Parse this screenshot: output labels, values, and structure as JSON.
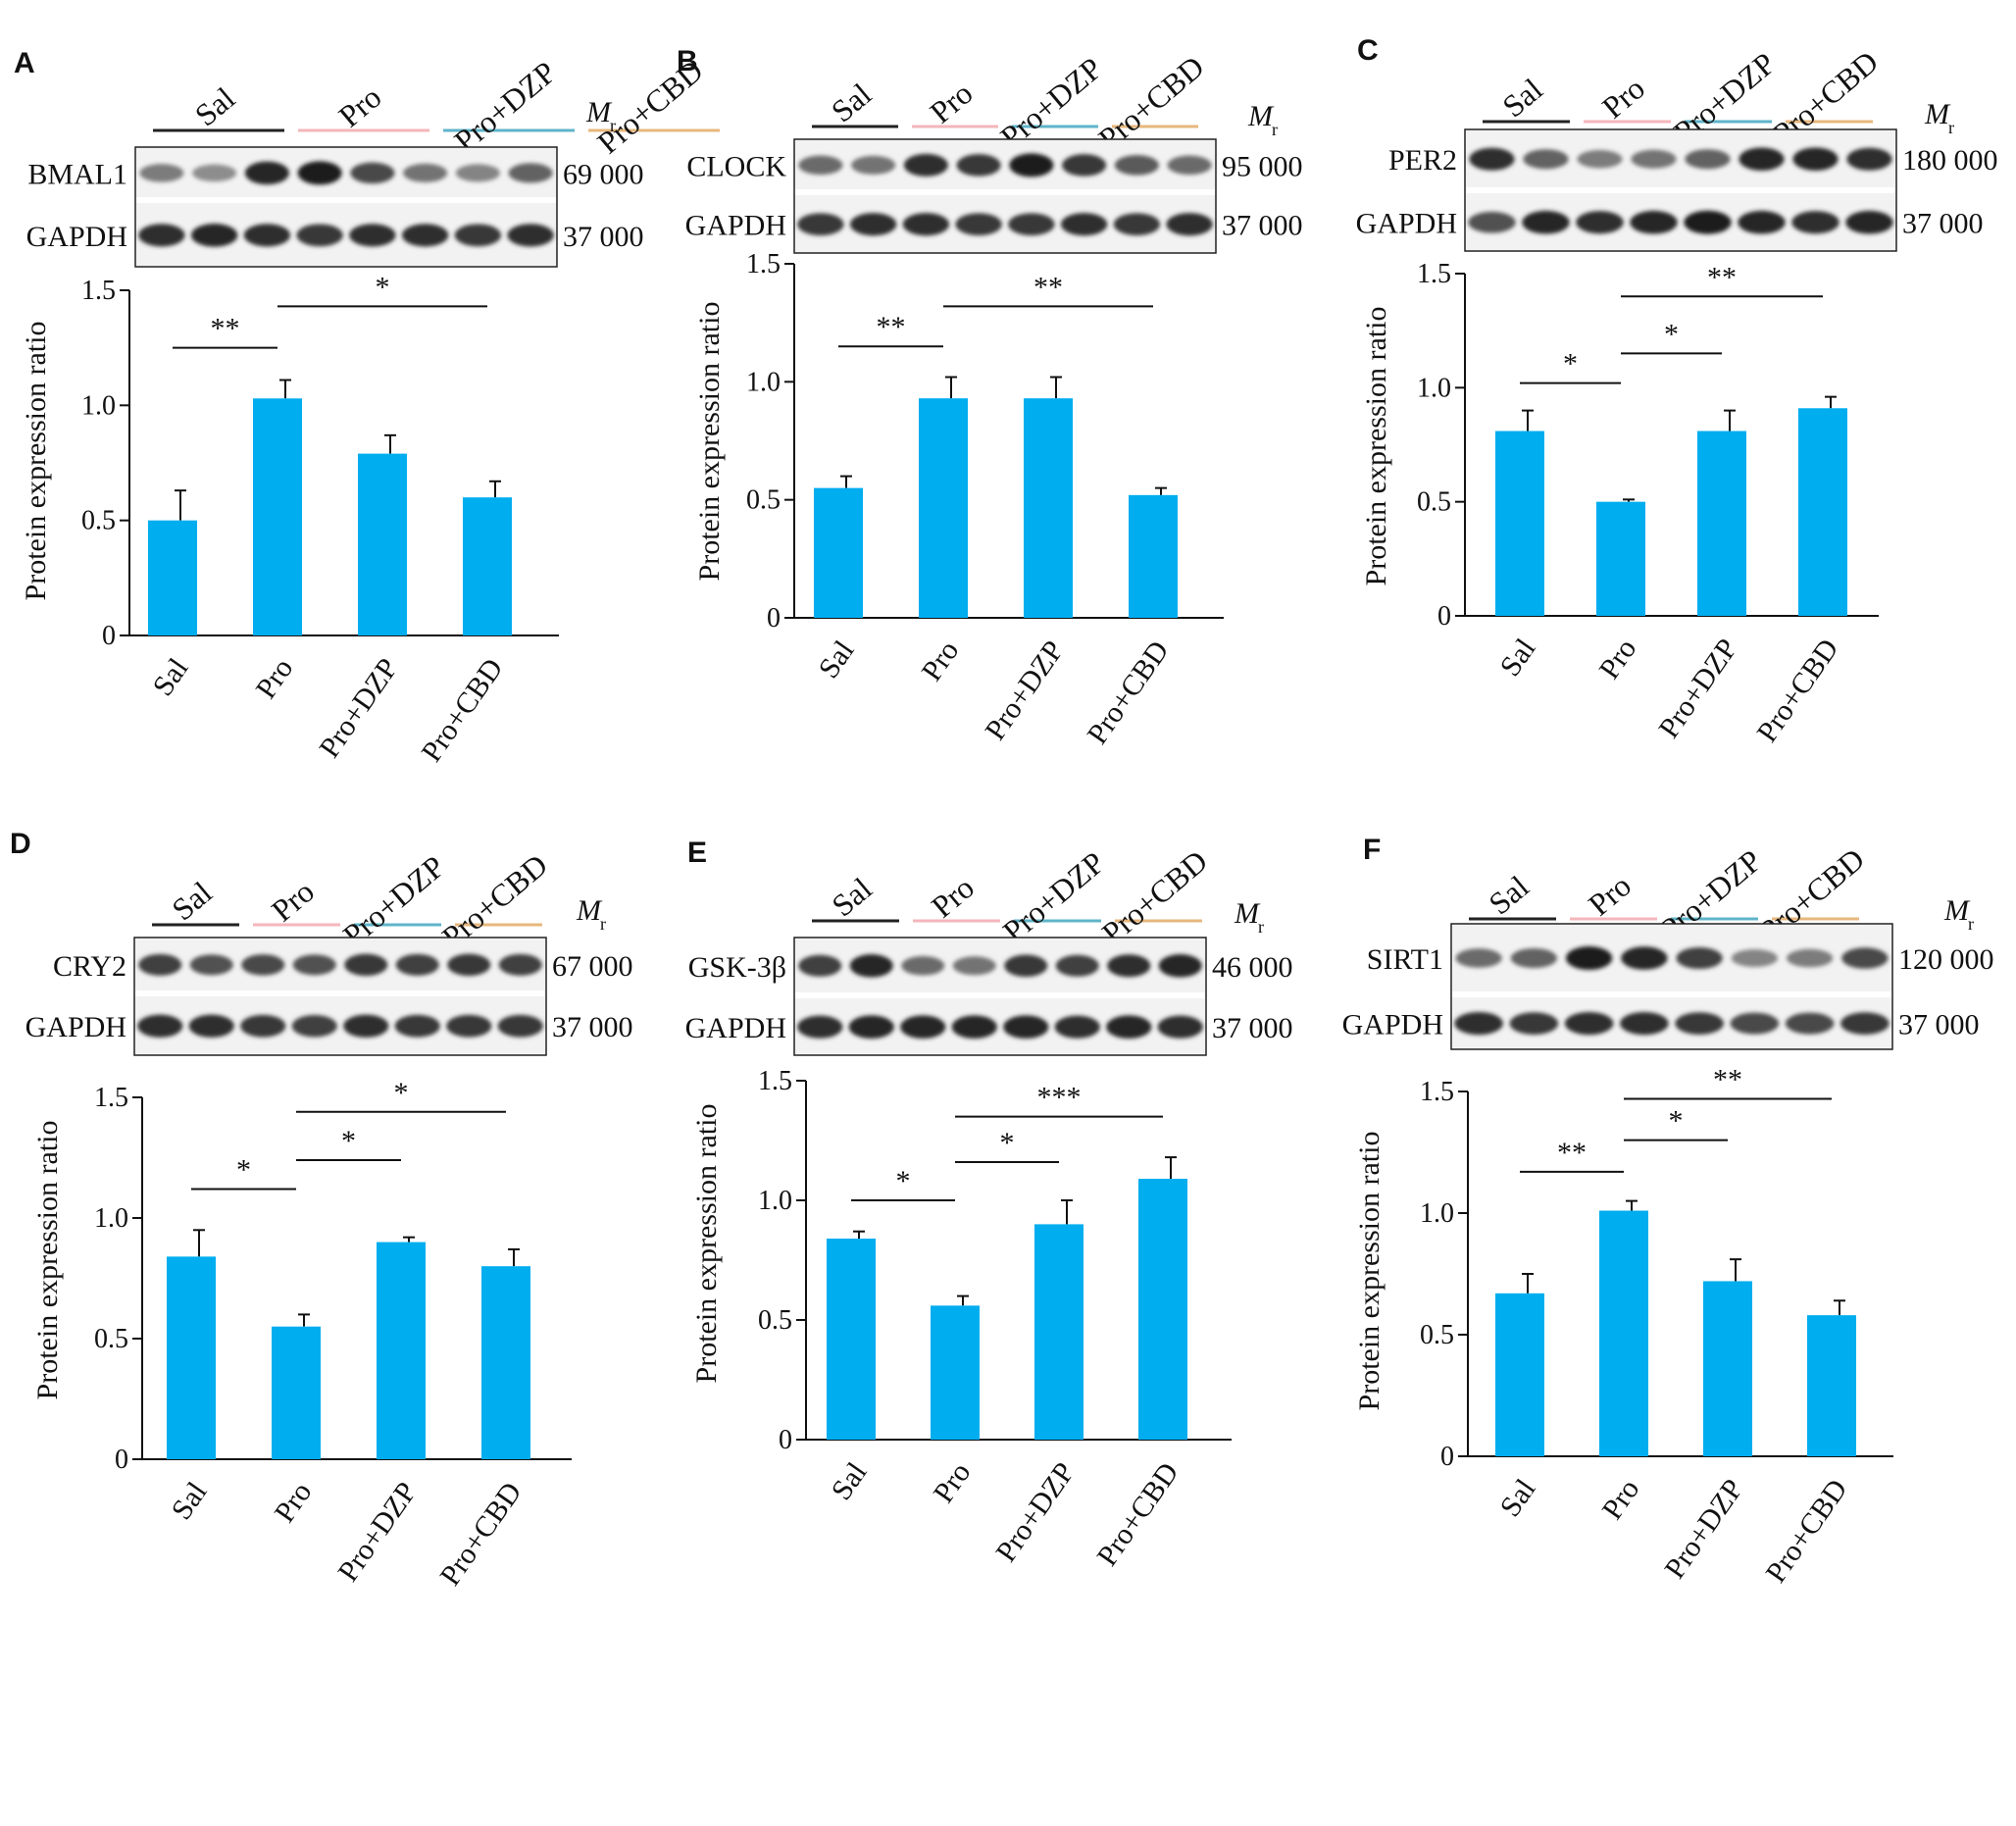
{
  "colors": {
    "bar": "#00adef",
    "error": "#111111",
    "group_lines": [
      "#222222",
      "#f4b6bb",
      "#5fb4c9",
      "#e7b77d"
    ]
  },
  "units_label": {
    "main": "M",
    "sub": "r"
  },
  "blot_lane_patterns": {
    "A": {
      "target": [
        0.45,
        0.35,
        0.95,
        1.0,
        0.75,
        0.5,
        0.4,
        0.6
      ],
      "gapdh": [
        0.9,
        0.95,
        0.9,
        0.85,
        0.9,
        0.9,
        0.85,
        0.9
      ]
    },
    "B": {
      "target": [
        0.55,
        0.5,
        0.9,
        0.85,
        1.0,
        0.85,
        0.65,
        0.55
      ],
      "gapdh": [
        0.85,
        0.9,
        0.9,
        0.85,
        0.85,
        0.9,
        0.85,
        0.9
      ]
    },
    "C": {
      "target": [
        0.9,
        0.6,
        0.45,
        0.5,
        0.6,
        0.95,
        0.95,
        0.9
      ],
      "gapdh": [
        0.7,
        0.95,
        0.9,
        0.95,
        1.0,
        0.95,
        0.9,
        0.95
      ]
    },
    "D": {
      "target": [
        0.8,
        0.7,
        0.75,
        0.7,
        0.85,
        0.8,
        0.85,
        0.8
      ],
      "gapdh": [
        0.9,
        0.9,
        0.85,
        0.8,
        0.9,
        0.85,
        0.85,
        0.85
      ]
    },
    "E": {
      "target": [
        0.8,
        0.95,
        0.55,
        0.5,
        0.85,
        0.8,
        0.9,
        0.95
      ],
      "gapdh": [
        0.9,
        0.95,
        0.95,
        0.95,
        0.95,
        0.9,
        0.95,
        0.9
      ]
    },
    "F": {
      "target": [
        0.55,
        0.6,
        1.0,
        0.95,
        0.8,
        0.4,
        0.45,
        0.75
      ],
      "gapdh": [
        0.9,
        0.85,
        0.9,
        0.9,
        0.85,
        0.75,
        0.75,
        0.85
      ]
    }
  },
  "chart_data": [
    {
      "panel": "A",
      "type": "bar",
      "blot_target": "BMAL1",
      "blot_loading": "GAPDH",
      "mr_target": "69 000",
      "mr_loading": "37 000",
      "groups": [
        "Sal",
        "Pro",
        "Pro+DZP",
        "Pro+CBD"
      ],
      "categories": [
        "Sal",
        "Pro",
        "Pro+DZP",
        "Pro+CBD"
      ],
      "values": [
        0.5,
        1.03,
        0.79,
        0.6
      ],
      "errors": [
        0.13,
        0.08,
        0.08,
        0.07
      ],
      "ylabel": "Protein expression ratio",
      "ylim": [
        0,
        1.5
      ],
      "yticks": [
        0,
        0.5,
        1.0,
        1.5
      ],
      "ytick_labels": [
        "0",
        "0.5",
        "1.0",
        "1.5"
      ],
      "significance": [
        {
          "from": 0,
          "to": 1,
          "y": 1.25,
          "label": "**"
        },
        {
          "from": 1,
          "to": 3,
          "y": 1.43,
          "label": "*"
        }
      ]
    },
    {
      "panel": "B",
      "type": "bar",
      "blot_target": "CLOCK",
      "blot_loading": "GAPDH",
      "mr_target": "95 000",
      "mr_loading": "37 000",
      "groups": [
        "Sal",
        "Pro",
        "Pro+DZP",
        "Pro+CBD"
      ],
      "categories": [
        "Sal",
        "Pro",
        "Pro+DZP",
        "Pro+CBD"
      ],
      "values": [
        0.55,
        0.93,
        0.93,
        0.52
      ],
      "errors": [
        0.05,
        0.09,
        0.09,
        0.03
      ],
      "ylabel": "Protein expression ratio",
      "ylim": [
        0,
        1.5
      ],
      "yticks": [
        0,
        0.5,
        1.0,
        1.5
      ],
      "ytick_labels": [
        "0",
        "0.5",
        "1.0",
        "1.5"
      ],
      "significance": [
        {
          "from": 0,
          "to": 1,
          "y": 1.15,
          "label": "**"
        },
        {
          "from": 1,
          "to": 3,
          "y": 1.32,
          "label": "**"
        }
      ]
    },
    {
      "panel": "C",
      "type": "bar",
      "blot_target": "PER2",
      "blot_loading": "GAPDH",
      "mr_target": "180 000",
      "mr_loading": "37 000",
      "groups": [
        "Sal",
        "Pro",
        "Pro+DZP",
        "Pro+CBD"
      ],
      "categories": [
        "Sal",
        "Pro",
        "Pro+DZP",
        "Pro+CBD"
      ],
      "values": [
        0.81,
        0.5,
        0.81,
        0.91
      ],
      "errors": [
        0.09,
        0.01,
        0.09,
        0.05
      ],
      "ylabel": "Protein expression ratio",
      "ylim": [
        0,
        1.5
      ],
      "yticks": [
        0,
        0.5,
        1.0,
        1.5
      ],
      "ytick_labels": [
        "0",
        "0.5",
        "1.0",
        "1.5"
      ],
      "significance": [
        {
          "from": 0,
          "to": 1,
          "y": 1.02,
          "label": "*"
        },
        {
          "from": 1,
          "to": 2,
          "y": 1.15,
          "label": "*"
        },
        {
          "from": 1,
          "to": 3,
          "y": 1.4,
          "label": "**"
        }
      ]
    },
    {
      "panel": "D",
      "type": "bar",
      "blot_target": "CRY2",
      "blot_loading": "GAPDH",
      "mr_target": "67 000",
      "mr_loading": "37 000",
      "groups": [
        "Sal",
        "Pro",
        "Pro+DZP",
        "Pro+CBD"
      ],
      "categories": [
        "Sal",
        "Pro",
        "Pro+DZP",
        "Pro+CBD"
      ],
      "values": [
        0.84,
        0.55,
        0.9,
        0.8
      ],
      "errors": [
        0.11,
        0.05,
        0.02,
        0.07
      ],
      "ylabel": "Protein expression ratio",
      "ylim": [
        0,
        1.5
      ],
      "yticks": [
        0,
        0.5,
        1.0,
        1.5
      ],
      "ytick_labels": [
        "0",
        "0.5",
        "1.0",
        "1.5"
      ],
      "significance": [
        {
          "from": 0,
          "to": 1,
          "y": 1.12,
          "label": "*"
        },
        {
          "from": 1,
          "to": 2,
          "y": 1.24,
          "label": "*"
        },
        {
          "from": 1,
          "to": 3,
          "y": 1.44,
          "label": "*"
        }
      ]
    },
    {
      "panel": "E",
      "type": "bar",
      "blot_target": "GSK-3β",
      "blot_loading": "GAPDH",
      "mr_target": "46 000",
      "mr_loading": "37 000",
      "groups": [
        "Sal",
        "Pro",
        "Pro+DZP",
        "Pro+CBD"
      ],
      "categories": [
        "Sal",
        "Pro",
        "Pro+DZP",
        "Pro+CBD"
      ],
      "values": [
        0.84,
        0.56,
        0.9,
        1.09
      ],
      "errors": [
        0.03,
        0.04,
        0.1,
        0.09
      ],
      "ylabel": "Protein expression ratio",
      "ylim": [
        0,
        1.5
      ],
      "yticks": [
        0,
        0.5,
        1.0,
        1.5
      ],
      "ytick_labels": [
        "0",
        "0.5",
        "1.0",
        "1.5"
      ],
      "significance": [
        {
          "from": 0,
          "to": 1,
          "y": 1.0,
          "label": "*"
        },
        {
          "from": 1,
          "to": 2,
          "y": 1.16,
          "label": "*"
        },
        {
          "from": 1,
          "to": 3,
          "y": 1.35,
          "label": "***"
        }
      ]
    },
    {
      "panel": "F",
      "type": "bar",
      "blot_target": "SIRT1",
      "blot_loading": "GAPDH",
      "mr_target": "120 000",
      "mr_loading": "37 000",
      "groups": [
        "Sal",
        "Pro",
        "Pro+DZP",
        "Pro+CBD"
      ],
      "categories": [
        "Sal",
        "Pro",
        "Pro+DZP",
        "Pro+CBD"
      ],
      "values": [
        0.67,
        1.01,
        0.72,
        0.58
      ],
      "errors": [
        0.08,
        0.04,
        0.09,
        0.06
      ],
      "ylabel": "Protein expression ratio",
      "ylim": [
        0,
        1.5
      ],
      "yticks": [
        0,
        0.5,
        1.0,
        1.5
      ],
      "ytick_labels": [
        "0",
        "0.5",
        "1.0",
        "1.5"
      ],
      "significance": [
        {
          "from": 0,
          "to": 1,
          "y": 1.17,
          "label": "**"
        },
        {
          "from": 1,
          "to": 2,
          "y": 1.3,
          "label": "*"
        },
        {
          "from": 1,
          "to": 3,
          "y": 1.47,
          "label": "**"
        }
      ]
    }
  ]
}
